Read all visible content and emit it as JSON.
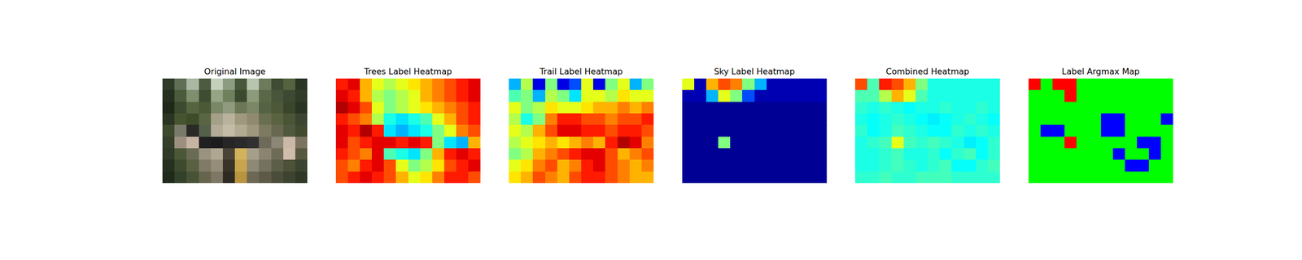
{
  "chart_data": [
    {
      "type": "image",
      "title": "Original Image",
      "tick_labels": false,
      "colors": [
        [
          "#2f3a28",
          "#5f6e55",
          "#a9b8a2",
          "#4d5c40",
          "#c4d0bc",
          "#8c9c80",
          "#46573a",
          "#b7c4ae",
          "#6d7b5c",
          "#3f4b32",
          "#56633f",
          "#2b3524"
        ],
        [
          "#26301f",
          "#4a5a3c",
          "#7f8e6e",
          "#3e4d31",
          "#96a486",
          "#6f805d",
          "#3b4a2f",
          "#8d9a7c",
          "#5a6847",
          "#48553a",
          "#3d4a31",
          "#313b27"
        ],
        [
          "#1f291a",
          "#3c4a2f",
          "#55653f",
          "#4b5936",
          "#7a8766",
          "#8f9a7e",
          "#6b7757",
          "#7c8767",
          "#566244",
          "#4d5838",
          "#3a452c",
          "#2a3422"
        ],
        [
          "#2a3522",
          "#46552f",
          "#3e4c2c",
          "#5a6543",
          "#a39f88",
          "#b8b19c",
          "#9f987f",
          "#8f8a70",
          "#6a6e50",
          "#5a6240",
          "#4a5535",
          "#3a4430"
        ],
        [
          "#3d4a2d",
          "#7a7a6a",
          "#2a2a26",
          "#55604a",
          "#b3ab96",
          "#c4bca6",
          "#b2aa92",
          "#9e977e",
          "#7d7a62",
          "#67684f",
          "#50583d",
          "#41492f"
        ],
        [
          "#34402a",
          "#9d8f80",
          "#c7b5a4",
          "#202020",
          "#1c1c1c",
          "#262626",
          "#2a2a2a",
          "#303030",
          "#6e6a5a",
          "#8c8676",
          "#cbb8a7",
          "#7a7460"
        ],
        [
          "#2f3b26",
          "#4b5837",
          "#6a6b53",
          "#9a9380",
          "#b0a792",
          "#4a4436",
          "#d2b25a",
          "#a69e88",
          "#8a8470",
          "#6d6c56",
          "#d0bcaa",
          "#56593f"
        ],
        [
          "#263021",
          "#3e4a2e",
          "#5a6042",
          "#7f7b66",
          "#958d78",
          "#3a3428",
          "#c9a44c",
          "#8f8874",
          "#757260",
          "#5d5e48",
          "#4c5138",
          "#3b4430"
        ],
        [
          "#202a1b",
          "#33402a",
          "#485236",
          "#65654e",
          "#7d7764",
          "#2e2a22",
          "#b8943f",
          "#6c6854",
          "#5d5b48",
          "#4a4d3a",
          "#3c4330",
          "#2f3826"
        ]
      ]
    },
    {
      "type": "heatmap",
      "title": "Trees Label Heatmap",
      "tick_labels": false,
      "zlim": [
        0,
        1
      ],
      "z": [
        [
          0.85,
          0.9,
          0.7,
          0.6,
          0.55,
          0.6,
          0.65,
          0.7,
          0.75,
          0.8,
          0.85,
          0.9
        ],
        [
          0.9,
          0.85,
          0.7,
          0.55,
          0.5,
          0.55,
          0.6,
          0.7,
          0.75,
          0.8,
          0.85,
          0.9
        ],
        [
          0.95,
          0.9,
          0.8,
          0.6,
          0.5,
          0.55,
          0.6,
          0.65,
          0.7,
          0.75,
          0.8,
          0.85
        ],
        [
          0.85,
          0.8,
          0.75,
          0.55,
          0.4,
          0.35,
          0.4,
          0.45,
          0.6,
          0.7,
          0.8,
          0.85
        ],
        [
          0.9,
          0.85,
          0.95,
          0.85,
          0.35,
          0.3,
          0.35,
          0.4,
          0.5,
          0.6,
          0.75,
          0.8
        ],
        [
          0.9,
          0.8,
          0.85,
          0.9,
          0.9,
          0.85,
          0.9,
          0.85,
          0.5,
          0.35,
          0.3,
          0.7
        ],
        [
          0.85,
          0.8,
          0.75,
          0.9,
          0.45,
          0.4,
          0.35,
          0.5,
          0.7,
          0.85,
          0.9,
          0.85
        ],
        [
          0.8,
          0.75,
          0.85,
          0.9,
          0.8,
          0.6,
          0.5,
          0.55,
          0.65,
          0.8,
          0.85,
          0.9
        ],
        [
          0.8,
          0.85,
          0.9,
          0.85,
          0.8,
          0.7,
          0.6,
          0.65,
          0.75,
          0.85,
          0.85,
          0.8
        ]
      ]
    },
    {
      "type": "heatmap",
      "title": "Trail Label Heatmap",
      "tick_labels": false,
      "zlim": [
        0,
        1
      ],
      "z": [
        [
          0.3,
          0.55,
          0.1,
          0.5,
          0.1,
          0.2,
          0.6,
          0.1,
          0.5,
          0.6,
          0.3,
          0.5
        ],
        [
          0.45,
          0.5,
          0.3,
          0.55,
          0.5,
          0.35,
          0.6,
          0.6,
          0.55,
          0.65,
          0.6,
          0.6
        ],
        [
          0.6,
          0.5,
          0.55,
          0.65,
          0.6,
          0.6,
          0.65,
          0.7,
          0.7,
          0.75,
          0.7,
          0.75
        ],
        [
          0.55,
          0.4,
          0.5,
          0.75,
          0.85,
          0.85,
          0.8,
          0.8,
          0.75,
          0.8,
          0.8,
          0.85
        ],
        [
          0.6,
          0.55,
          0.7,
          0.8,
          0.9,
          0.9,
          0.85,
          0.85,
          0.8,
          0.85,
          0.85,
          0.8
        ],
        [
          0.55,
          0.6,
          0.65,
          0.7,
          0.65,
          0.7,
          0.75,
          0.7,
          0.85,
          0.95,
          0.9,
          0.75
        ],
        [
          0.5,
          0.55,
          0.7,
          0.75,
          0.8,
          0.85,
          0.9,
          0.9,
          0.8,
          0.7,
          0.75,
          0.8
        ],
        [
          0.6,
          0.65,
          0.75,
          0.8,
          0.7,
          0.75,
          0.85,
          0.9,
          0.8,
          0.75,
          0.7,
          0.75
        ],
        [
          0.65,
          0.7,
          0.8,
          0.75,
          0.7,
          0.8,
          0.85,
          0.85,
          0.8,
          0.75,
          0.7,
          0.7
        ]
      ]
    },
    {
      "type": "heatmap",
      "title": "Sky Label Heatmap",
      "tick_labels": false,
      "zlim": [
        0,
        1
      ],
      "z": [
        [
          0.6,
          0.05,
          0.7,
          0.8,
          0.75,
          0.5,
          0.3,
          0.05,
          0.05,
          0.05,
          0.05,
          0.05
        ],
        [
          0.05,
          0.05,
          0.3,
          0.6,
          0.5,
          0.2,
          0.05,
          0.05,
          0.05,
          0.05,
          0.05,
          0.05
        ],
        [
          0.02,
          0.02,
          0.02,
          0.02,
          0.02,
          0.02,
          0.02,
          0.02,
          0.02,
          0.02,
          0.02,
          0.02
        ],
        [
          0.02,
          0.02,
          0.02,
          0.02,
          0.02,
          0.02,
          0.02,
          0.02,
          0.02,
          0.02,
          0.02,
          0.02
        ],
        [
          0.02,
          0.02,
          0.02,
          0.02,
          0.02,
          0.02,
          0.02,
          0.02,
          0.02,
          0.02,
          0.02,
          0.02
        ],
        [
          0.02,
          0.02,
          0.02,
          0.5,
          0.02,
          0.02,
          0.02,
          0.02,
          0.02,
          0.02,
          0.02,
          0.02
        ],
        [
          0.02,
          0.02,
          0.02,
          0.02,
          0.02,
          0.02,
          0.02,
          0.02,
          0.02,
          0.02,
          0.02,
          0.02
        ],
        [
          0.02,
          0.02,
          0.02,
          0.02,
          0.02,
          0.02,
          0.02,
          0.02,
          0.02,
          0.02,
          0.02,
          0.02
        ],
        [
          0.02,
          0.02,
          0.02,
          0.02,
          0.02,
          0.02,
          0.02,
          0.02,
          0.02,
          0.02,
          0.02,
          0.02
        ]
      ]
    },
    {
      "type": "heatmap",
      "title": "Combined Heatmap",
      "tick_labels": false,
      "zlim": [
        0,
        1
      ],
      "z": [
        [
          0.8,
          0.45,
          0.85,
          0.8,
          0.7,
          0.5,
          0.4,
          0.4,
          0.4,
          0.4,
          0.4,
          0.4
        ],
        [
          0.45,
          0.45,
          0.55,
          0.7,
          0.6,
          0.45,
          0.4,
          0.4,
          0.4,
          0.4,
          0.4,
          0.4
        ],
        [
          0.42,
          0.4,
          0.42,
          0.4,
          0.38,
          0.4,
          0.4,
          0.42,
          0.4,
          0.4,
          0.42,
          0.4
        ],
        [
          0.4,
          0.38,
          0.4,
          0.42,
          0.4,
          0.38,
          0.36,
          0.38,
          0.4,
          0.42,
          0.4,
          0.38
        ],
        [
          0.42,
          0.38,
          0.4,
          0.44,
          0.42,
          0.4,
          0.38,
          0.38,
          0.42,
          0.4,
          0.42,
          0.4
        ],
        [
          0.4,
          0.42,
          0.44,
          0.6,
          0.44,
          0.42,
          0.44,
          0.42,
          0.4,
          0.36,
          0.38,
          0.42
        ],
        [
          0.4,
          0.4,
          0.42,
          0.44,
          0.4,
          0.4,
          0.42,
          0.38,
          0.42,
          0.44,
          0.38,
          0.42
        ],
        [
          0.4,
          0.4,
          0.42,
          0.44,
          0.42,
          0.4,
          0.42,
          0.44,
          0.38,
          0.38,
          0.42,
          0.44
        ],
        [
          0.42,
          0.42,
          0.44,
          0.42,
          0.42,
          0.44,
          0.44,
          0.44,
          0.42,
          0.42,
          0.42,
          0.42
        ]
      ]
    },
    {
      "type": "heatmap",
      "title": "Label Argmax Map",
      "tick_labels": false,
      "colors": [
        "#00ff00",
        "#0000ff",
        "#ff0000"
      ],
      "z": [
        [
          2,
          0,
          2,
          2,
          0,
          0,
          0,
          0,
          0,
          0,
          0,
          0
        ],
        [
          0,
          0,
          0,
          2,
          0,
          0,
          0,
          0,
          0,
          0,
          0,
          0
        ],
        [
          0,
          0,
          0,
          0,
          0,
          0,
          0,
          0,
          0,
          0,
          0,
          0
        ],
        [
          0,
          0,
          0,
          0,
          0,
          0,
          1,
          1,
          0,
          0,
          0,
          1
        ],
        [
          0,
          1,
          1,
          0,
          0,
          0,
          1,
          1,
          0,
          0,
          0,
          0
        ],
        [
          0,
          0,
          0,
          2,
          0,
          0,
          0,
          0,
          0,
          1,
          1,
          0
        ],
        [
          0,
          0,
          0,
          0,
          0,
          0,
          0,
          1,
          0,
          0,
          1,
          0
        ],
        [
          0,
          0,
          0,
          0,
          0,
          0,
          0,
          0,
          1,
          1,
          0,
          0
        ],
        [
          0,
          0,
          0,
          0,
          0,
          0,
          0,
          0,
          0,
          0,
          0,
          0
        ]
      ]
    }
  ]
}
